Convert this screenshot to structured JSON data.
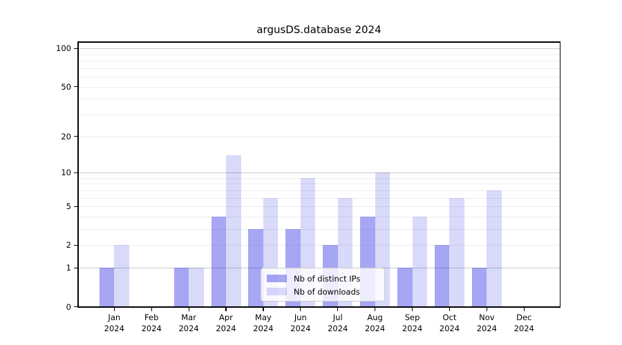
{
  "title": "argusDS.database 2024",
  "colors": {
    "bars_base": "#0000e0",
    "ips_alpha": "0.35",
    "downloads_alpha": "0.15",
    "bar_ips_rendered_hex": "#a6a6f5",
    "bar_downloads_rendered_hex": "#d9d9fa",
    "grid_major": "#c9c9c9",
    "grid_minor": "#ededed",
    "axis": "#000000",
    "text": "#000000",
    "legend_border": "#cccccc"
  },
  "chart_data": {
    "type": "bar",
    "title": "argusDS.database 2024",
    "categories": [
      "Jan 2024",
      "Feb 2024",
      "Mar 2024",
      "Apr 2024",
      "May 2024",
      "Jun 2024",
      "Jul 2024",
      "Aug 2024",
      "Sep 2024",
      "Oct 2024",
      "Nov 2024",
      "Dec 2024"
    ],
    "month_labels": [
      "Jan",
      "Feb",
      "Mar",
      "Apr",
      "May",
      "Jun",
      "Jul",
      "Aug",
      "Sep",
      "Oct",
      "Nov",
      "Dec"
    ],
    "year_label": "2024",
    "series": [
      {
        "name": "Nb of distinct IPs",
        "color_key": "ips",
        "values": [
          1,
          0,
          1,
          4,
          3,
          3,
          2,
          4,
          1,
          2,
          1,
          0
        ]
      },
      {
        "name": "Nb of downloads",
        "color_key": "downloads",
        "values": [
          2,
          0,
          1,
          14,
          6,
          9,
          6,
          10,
          4,
          6,
          7,
          0
        ]
      }
    ],
    "xlabel": "",
    "ylabel": "",
    "y_axis": {
      "scale": "log1p",
      "tick_values": [
        0,
        1,
        2,
        5,
        10,
        20,
        50,
        100
      ],
      "tick_labels": [
        "0",
        "1",
        "2",
        "5",
        "10",
        "20",
        "50",
        "100"
      ],
      "major_gridlines": [
        1,
        10,
        100
      ],
      "minor_gridlines": [
        2,
        3,
        4,
        5,
        6,
        7,
        8,
        9,
        20,
        30,
        40,
        50,
        60,
        70,
        80,
        90
      ],
      "ylim": [
        0,
        105
      ]
    },
    "legend": {
      "position": "lower center",
      "items": [
        "Nb of distinct IPs",
        "Nb of downloads"
      ]
    },
    "grid": "on"
  }
}
